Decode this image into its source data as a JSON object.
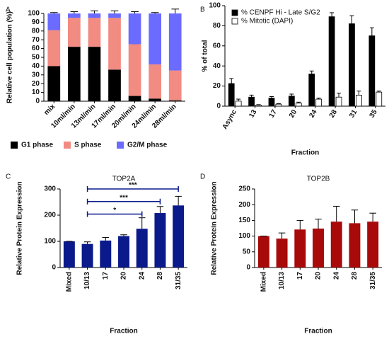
{
  "chart_data": [
    {
      "type": "stacked_bar",
      "panel": "A",
      "ylabel": "Relative cell population (%)",
      "categories": [
        "mix",
        "10ml/min",
        "13ml/min",
        "17ml/min",
        "20ml/min",
        "24ml/min",
        "28ml/min"
      ],
      "series": [
        {
          "name": "G1 phase",
          "color": "#000000",
          "values": [
            40,
            62,
            62,
            36,
            6,
            3,
            1
          ],
          "errors": [
            1.5,
            0.5,
            3,
            4,
            3,
            1,
            1
          ]
        },
        {
          "name": "S phase",
          "color": "#f28b82",
          "values": [
            41,
            33,
            33,
            59,
            59,
            39,
            34
          ],
          "errors": [
            1,
            0.5,
            0.5,
            0.5,
            0.5,
            1,
            3
          ]
        },
        {
          "name": "G2/M phase",
          "color": "#6b6bff",
          "values": [
            19,
            5,
            5,
            5,
            35,
            58,
            65
          ],
          "errors": [
            1,
            2,
            3,
            3,
            2,
            1,
            5
          ]
        }
      ],
      "ylim": [
        0,
        100
      ],
      "yticks": [
        0,
        10,
        20,
        30,
        40,
        50,
        60,
        70,
        80,
        90,
        100
      ],
      "legend": "bottom"
    },
    {
      "type": "grouped_bar",
      "panel": "B",
      "ylabel": "% of total",
      "xlabel": "Fraction",
      "categories": [
        "Async",
        "13",
        "17",
        "20",
        "24",
        "28",
        "31",
        "35"
      ],
      "series": [
        {
          "name": "% CENPF Hi - Late S/G2",
          "color": "#000000",
          "values": [
            22.5,
            9,
            8,
            10,
            32,
            89,
            82,
            70
          ],
          "errors": [
            5,
            2,
            1.5,
            2,
            3,
            4,
            8,
            8
          ]
        },
        {
          "name": "% Mitotic (DAPI)",
          "color": "#ffffff",
          "values": [
            5,
            1,
            2,
            3,
            7,
            9,
            11,
            14
          ],
          "errors": [
            2,
            0.5,
            0.5,
            1,
            1,
            4,
            4,
            1
          ]
        }
      ],
      "ylim": [
        0,
        100
      ],
      "yticks": [
        0,
        20,
        40,
        60,
        80,
        100
      ],
      "legend": "top-left"
    },
    {
      "type": "bar",
      "panel": "C",
      "title": "TOP2A",
      "ylabel": "Relative Protein Expression",
      "xlabel": "Fraction",
      "categories": [
        "Mixed",
        "10/13",
        "17",
        "20",
        "24",
        "28",
        "31/35"
      ],
      "values": [
        100,
        90,
        103,
        120,
        148,
        208,
        237
      ],
      "errors": [
        0,
        8,
        12,
        5,
        42,
        25,
        35
      ],
      "color": "#0a1a8a",
      "ylim": [
        0,
        300
      ],
      "yticks": [
        0,
        100,
        200,
        300
      ],
      "annotations": [
        {
          "label": "*",
          "from": "10/13",
          "to": "24"
        },
        {
          "label": "***",
          "from": "10/13",
          "to": "28"
        },
        {
          "label": "***",
          "from": "10/13",
          "to": "31/35"
        }
      ]
    },
    {
      "type": "bar",
      "panel": "D",
      "title": "TOP2B",
      "ylabel": "Relative Protein Expression",
      "xlabel": "Fraction",
      "categories": [
        "Mixed",
        "10/13",
        "17",
        "20",
        "24",
        "28",
        "31/35"
      ],
      "values": [
        100,
        92,
        121,
        124,
        146,
        141,
        146
      ],
      "errors": [
        0,
        18,
        29,
        30,
        49,
        42,
        27
      ],
      "color": "#a80a0a",
      "ylim": [
        0,
        250
      ],
      "yticks": [
        0,
        50,
        100,
        150,
        200,
        250
      ]
    }
  ]
}
